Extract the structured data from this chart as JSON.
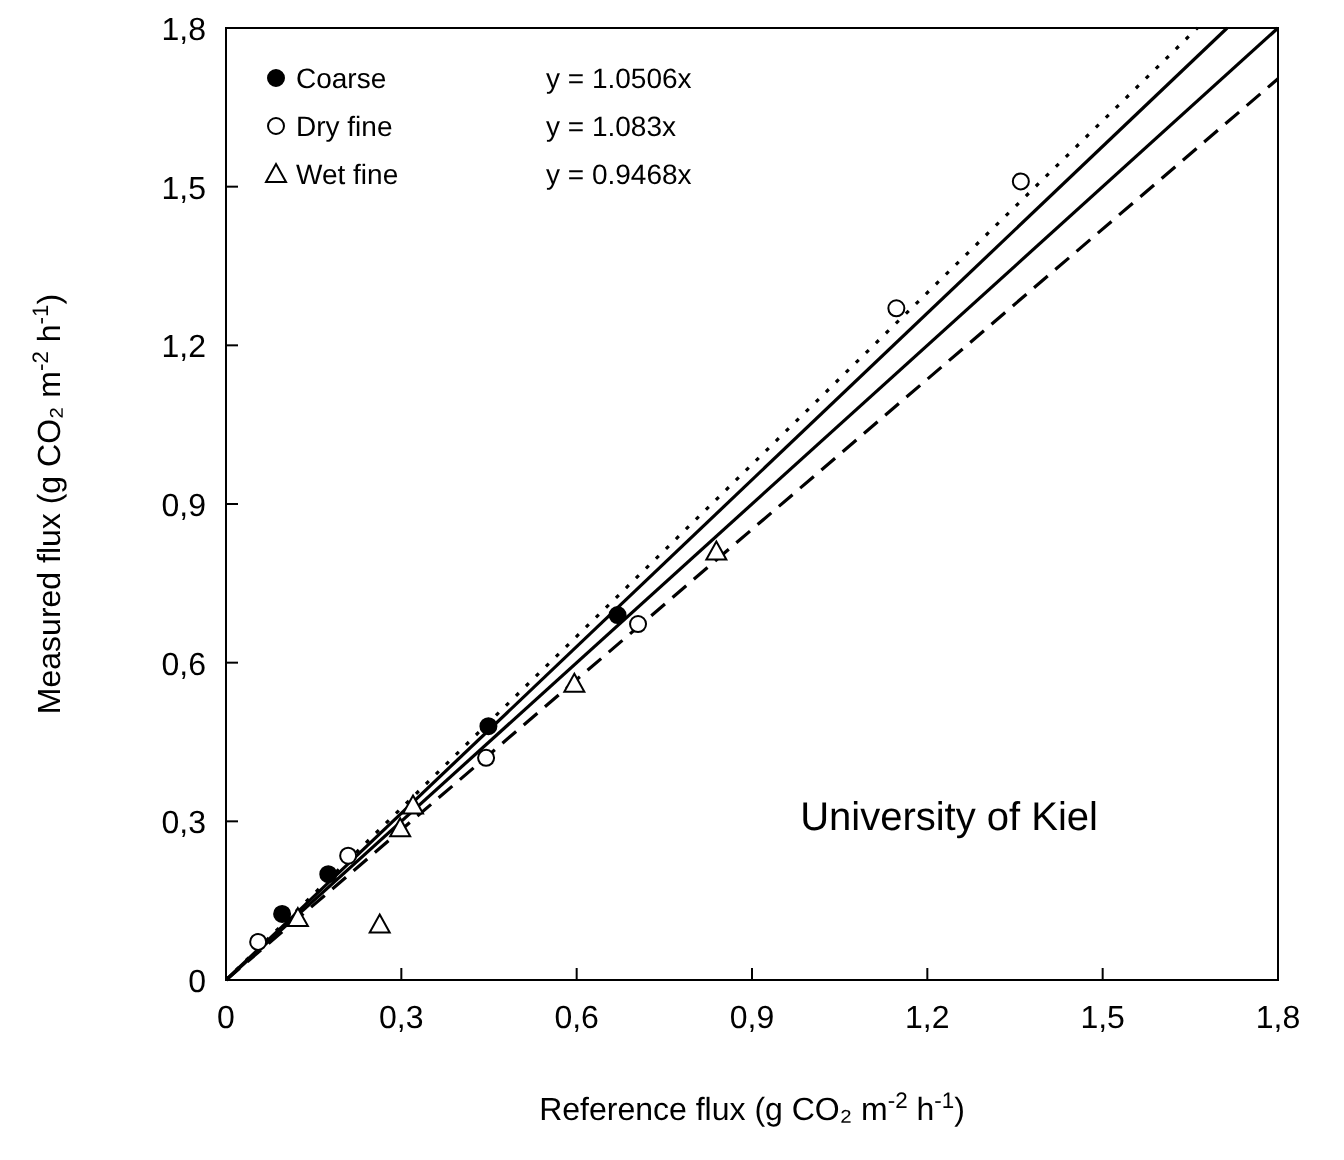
{
  "chart_data": {
    "type": "scatter",
    "xlabel": "Reference flux (g CO₂ m$^{-2}$ h$^{-1}$)",
    "ylabel": "Measured flux (g CO₂ m$^{-2}$ h$^{-1}$)",
    "xlim": [
      0,
      1.8
    ],
    "ylim": [
      0,
      1.8
    ],
    "xticks": [
      0,
      {
        "value": 0.3,
        "label": "0,3"
      },
      {
        "value": 0.6,
        "label": "0,6"
      },
      {
        "value": 0.9,
        "label": "0,9"
      },
      {
        "value": 1.2,
        "label": "1,2"
      },
      {
        "value": 1.5,
        "label": "1,5"
      },
      {
        "value": 1.8,
        "label": "1,8"
      }
    ],
    "yticks": [
      0,
      {
        "value": 0.3,
        "label": "0,3"
      },
      {
        "value": 0.6,
        "label": "0,6"
      },
      {
        "value": 0.9,
        "label": "0,9"
      },
      {
        "value": 1.2,
        "label": "1,2"
      },
      {
        "value": 1.5,
        "label": "1,5"
      },
      {
        "value": 1.8,
        "label": "1,8"
      }
    ],
    "grid": false,
    "legend": "top left",
    "annotations": [
      "y = 1.0506x",
      "y = 1.083x",
      "y = 0.9468x",
      "University of Kiel"
    ],
    "series": [
      {
        "type": "line",
        "color": "#000000",
        "line_style": "solid",
        "marker": "none",
        "x": [
          0,
          1.713
        ],
        "values": [
          0,
          1.8
        ]
      },
      {
        "type": "line",
        "color": "#000000",
        "line_style": "dotted",
        "marker": "none",
        "x": [
          0,
          1.662
        ],
        "values": [
          0,
          1.8
        ]
      },
      {
        "type": "line",
        "color": "#000000",
        "line_style": "dashed",
        "marker": "none",
        "x": [
          0,
          1.8
        ],
        "values": [
          0,
          1.704
        ]
      },
      {
        "type": "line",
        "color": "#000000",
        "line_style": "solid",
        "marker": "none",
        "x": [
          0,
          1.8
        ],
        "values": [
          0,
          1.8
        ]
      },
      {
        "name": "Coarse",
        "color": "#000000",
        "marker": "circle",
        "x": [
          0.096,
          0.175,
          0.449,
          0.67
        ],
        "values": [
          0.125,
          0.2,
          0.48,
          0.69
        ]
      },
      {
        "name": "Dry fine",
        "color": "#ffffff",
        "marker": "circle",
        "x": [
          0.055,
          0.209,
          0.445,
          0.705,
          1.147,
          1.36
        ],
        "values": [
          0.072,
          0.235,
          0.42,
          0.673,
          1.27,
          1.51
        ]
      },
      {
        "name": "Wet fine",
        "color": "#ffffff",
        "marker": "triangle",
        "x": [
          0.123,
          0.263,
          0.298,
          0.32,
          0.596,
          0.839
        ],
        "values": [
          0.117,
          0.105,
          0.287,
          0.33,
          0.56,
          0.81
        ]
      }
    ]
  }
}
